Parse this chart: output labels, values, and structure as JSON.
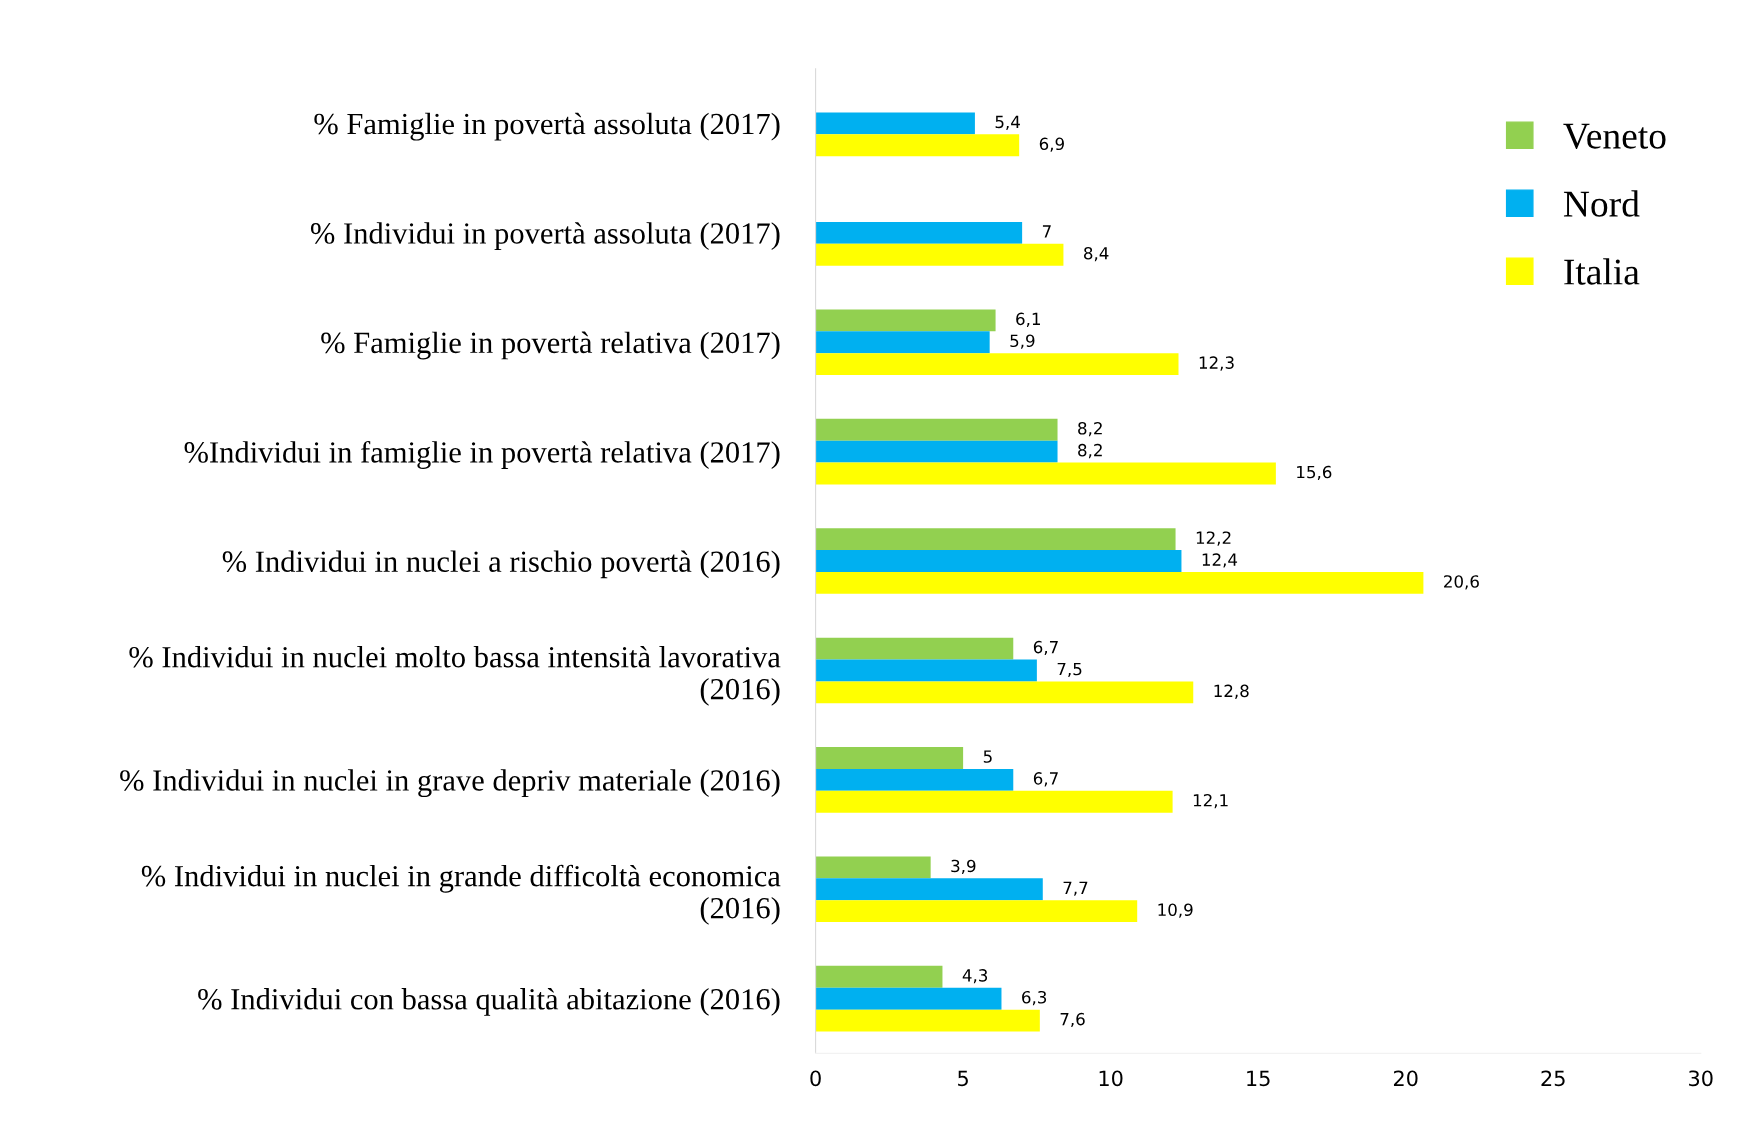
{
  "chart_data": {
    "type": "bar",
    "orientation": "horizontal",
    "categories": [
      "% Famiglie in povertà assoluta (2017)",
      "% Individui in povertà assoluta (2017)",
      "% Famiglie in povertà relativa (2017)",
      "%Individui in famiglie in povertà relativa (2017)",
      "% Individui in nuclei a rischio povertà (2016)",
      "% Individui in nuclei molto bassa intensità lavorativa (2016)",
      "% Individui in nuclei in grave depriv materiale (2016)",
      "% Individui in nuclei in grande difficoltà economica (2016)",
      "% Individui con bassa qualità abitazione (2016)"
    ],
    "series": [
      {
        "name": "Veneto",
        "color": "#92d050",
        "values": [
          null,
          null,
          6.1,
          8.2,
          12.2,
          6.7,
          5,
          3.9,
          4.3
        ],
        "value_labels": [
          null,
          null,
          "6,1",
          "8,2",
          "12,2",
          "6,7",
          "5",
          "3,9",
          "4,3"
        ]
      },
      {
        "name": "Nord",
        "color": "#00b0f0",
        "values": [
          5.4,
          7,
          5.9,
          8.2,
          12.4,
          7.5,
          6.7,
          7.7,
          6.3
        ],
        "value_labels": [
          "5,4",
          "7",
          "5,9",
          "8,2",
          "12,4",
          "7,5",
          "6,7",
          "7,7",
          "6,3"
        ]
      },
      {
        "name": "Italia",
        "color": "#ffff00",
        "values": [
          6.9,
          8.4,
          12.3,
          15.6,
          20.6,
          12.8,
          12.1,
          10.9,
          7.6
        ],
        "value_labels": [
          "6,9",
          "8,4",
          "12,3",
          "15,6",
          "20,6",
          "12,8",
          "12,1",
          "10,9",
          "7,6"
        ]
      }
    ],
    "xlim": [
      0,
      30
    ],
    "xticks": [
      0,
      5,
      10,
      15,
      20,
      25,
      30
    ],
    "grid": false,
    "legend": "top right"
  }
}
